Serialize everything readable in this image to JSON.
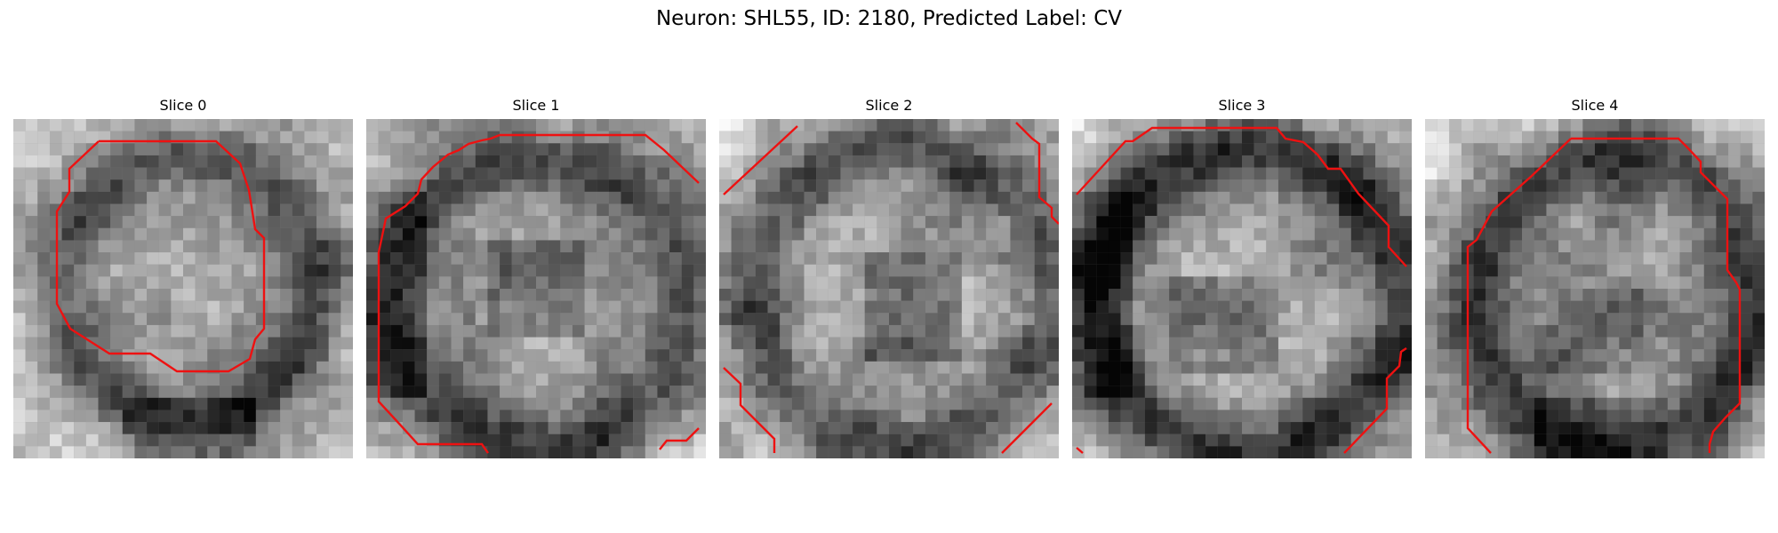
{
  "figure": {
    "title": "Neuron: SHL55, ID: 2180, Predicted Label: CV"
  },
  "panels": [
    {
      "title": "Slice 0"
    },
    {
      "title": "Slice 1"
    },
    {
      "title": "Slice 2"
    },
    {
      "title": "Slice 3"
    },
    {
      "title": "Slice 4"
    }
  ],
  "colors": {
    "background": "#ffffff",
    "contour": "#ee1111"
  },
  "image_style": "grayscale microscopy crop with pixelated texture and red segmentation contour"
}
